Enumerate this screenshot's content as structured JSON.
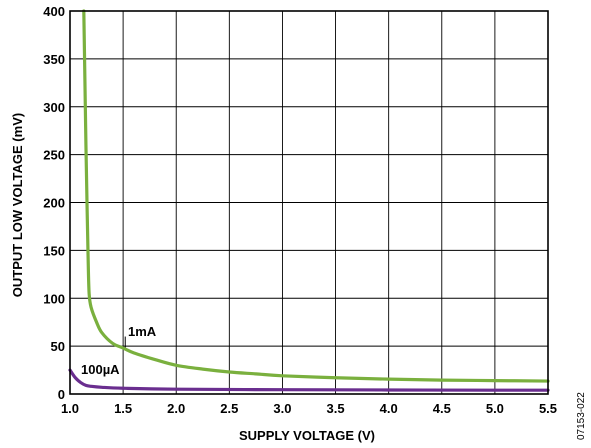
{
  "chart_data": {
    "type": "line",
    "xlabel": "SUPPLY VOLTAGE (V)",
    "ylabel": "OUTPUT LOW VOLTAGE (mV)",
    "xlim": [
      1.0,
      5.5
    ],
    "ylim": [
      0,
      400
    ],
    "grid": true,
    "x_ticks": [
      "1.0",
      "1.5",
      "2.0",
      "2.5",
      "3.0",
      "3.5",
      "4.0",
      "4.5",
      "5.0",
      "5.5"
    ],
    "y_ticks": [
      "0",
      "50",
      "100",
      "150",
      "200",
      "250",
      "300",
      "350",
      "400"
    ],
    "series": [
      {
        "name": "1mA",
        "color": "#7ab03e",
        "points": [
          [
            1.13,
            400
          ],
          [
            1.14,
            330
          ],
          [
            1.15,
            260
          ],
          [
            1.16,
            200
          ],
          [
            1.17,
            145
          ],
          [
            1.18,
            105
          ],
          [
            1.2,
            90
          ],
          [
            1.25,
            75
          ],
          [
            1.3,
            64
          ],
          [
            1.4,
            53
          ],
          [
            1.5,
            48
          ],
          [
            1.6,
            43
          ],
          [
            1.8,
            36
          ],
          [
            2.0,
            30
          ],
          [
            2.25,
            26
          ],
          [
            2.5,
            23
          ],
          [
            2.75,
            21
          ],
          [
            3.0,
            19
          ],
          [
            3.5,
            17
          ],
          [
            4.0,
            15.5
          ],
          [
            4.5,
            14.5
          ],
          [
            5.0,
            14
          ],
          [
            5.5,
            13.5
          ]
        ]
      },
      {
        "name": "100µA",
        "color": "#6a2e8f",
        "points": [
          [
            1.0,
            25
          ],
          [
            1.05,
            17
          ],
          [
            1.1,
            12
          ],
          [
            1.15,
            9
          ],
          [
            1.2,
            8
          ],
          [
            1.3,
            7
          ],
          [
            1.5,
            6
          ],
          [
            2.0,
            5
          ],
          [
            3.0,
            4.5
          ],
          [
            4.0,
            4.2
          ],
          [
            5.0,
            4.0
          ],
          [
            5.5,
            4.0
          ]
        ]
      }
    ],
    "annotations": [
      {
        "text": "1mA",
        "x": 1.55,
        "y": 59
      },
      {
        "text": "100µA",
        "x": 1.1,
        "y": 17
      }
    ]
  },
  "figure_id": "07153-022"
}
